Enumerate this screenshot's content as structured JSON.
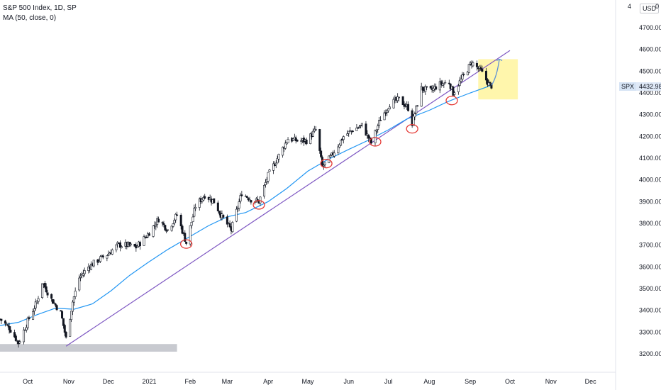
{
  "legend": {
    "title": "S&P 500 Index, 1D, SP",
    "indicator": "MA (50, close, 0)"
  },
  "axis": {
    "currency_label": "USD",
    "top_tick_partial": "4",
    "top_tick_partial_right": "0",
    "y_tick_labels": [
      "4700.00",
      "4600.00",
      "4500.00",
      "4400.00",
      "4300.00",
      "4200.00",
      "4100.00",
      "4000.00",
      "3900.00",
      "3800.00",
      "3700.00",
      "3600.00",
      "3500.00",
      "3400.00",
      "3300.00",
      "3200.00"
    ],
    "x_tick_labels": [
      "Oct",
      "Nov",
      "Dec",
      "2021",
      "Feb",
      "Mar",
      "Apr",
      "May",
      "Jun",
      "Jul",
      "Aug",
      "Sep",
      "Oct",
      "Nov",
      "Dec"
    ]
  },
  "price_tag": {
    "symbol": "SPX",
    "value": "4432.98"
  },
  "colors": {
    "candle": "#131722",
    "ma_line": "#2196f3",
    "trendline": "#7e57c2",
    "support_zone": "#c8cad0",
    "target_zone": "#fff59d",
    "circle": "#e53935",
    "projection": "#5b8fd6"
  },
  "chart_data": {
    "type": "line",
    "ylim": [
      3150,
      4800
    ],
    "y_ticks": [
      4700,
      4600,
      4500,
      4400,
      4300,
      4200,
      4100,
      4000,
      3900,
      3800,
      3700,
      3600,
      3500,
      3400,
      3300,
      3200
    ],
    "x_ticks": [
      {
        "label": "Oct",
        "date": "2020-10-01"
      },
      {
        "label": "Nov",
        "date": "2020-11-01"
      },
      {
        "label": "Dec",
        "date": "2020-12-01"
      },
      {
        "label": "2021",
        "date": "2021-01-01"
      },
      {
        "label": "Feb",
        "date": "2021-02-01"
      },
      {
        "label": "Mar",
        "date": "2021-03-01"
      },
      {
        "label": "Apr",
        "date": "2021-04-01"
      },
      {
        "label": "May",
        "date": "2021-05-01"
      },
      {
        "label": "Jun",
        "date": "2021-06-01"
      },
      {
        "label": "Jul",
        "date": "2021-07-01"
      },
      {
        "label": "Aug",
        "date": "2021-08-01"
      },
      {
        "label": "Sep",
        "date": "2021-09-01"
      },
      {
        "label": "Oct",
        "date": "2021-10-01"
      },
      {
        "label": "Nov",
        "date": "2021-11-01"
      },
      {
        "label": "Dec",
        "date": "2021-12-01"
      }
    ],
    "series": [
      {
        "name": "S&P 500 Index",
        "points": [
          [
            "2020-09-10",
            3360
          ],
          [
            "2020-09-17",
            3320
          ],
          [
            "2020-09-24",
            3250
          ],
          [
            "2020-10-01",
            3350
          ],
          [
            "2020-10-08",
            3440
          ],
          [
            "2020-10-12",
            3530
          ],
          [
            "2020-10-19",
            3450
          ],
          [
            "2020-10-26",
            3390
          ],
          [
            "2020-10-30",
            3270
          ],
          [
            "2020-11-04",
            3440
          ],
          [
            "2020-11-09",
            3550
          ],
          [
            "2020-11-16",
            3600
          ],
          [
            "2020-11-23",
            3630
          ],
          [
            "2020-12-01",
            3660
          ],
          [
            "2020-12-08",
            3700
          ],
          [
            "2020-12-15",
            3700
          ],
          [
            "2020-12-22",
            3690
          ],
          [
            "2020-12-31",
            3750
          ],
          [
            "2021-01-08",
            3820
          ],
          [
            "2021-01-15",
            3770
          ],
          [
            "2021-01-22",
            3840
          ],
          [
            "2021-01-29",
            3710
          ],
          [
            "2021-02-05",
            3880
          ],
          [
            "2021-02-12",
            3930
          ],
          [
            "2021-02-19",
            3900
          ],
          [
            "2021-02-25",
            3830
          ],
          [
            "2021-03-04",
            3770
          ],
          [
            "2021-03-12",
            3940
          ],
          [
            "2021-03-19",
            3910
          ],
          [
            "2021-03-25",
            3900
          ],
          [
            "2021-04-01",
            4020
          ],
          [
            "2021-04-08",
            4100
          ],
          [
            "2021-04-16",
            4190
          ],
          [
            "2021-04-23",
            4180
          ],
          [
            "2021-04-30",
            4180
          ],
          [
            "2021-05-07",
            4230
          ],
          [
            "2021-05-12",
            4060
          ],
          [
            "2021-05-19",
            4110
          ],
          [
            "2021-05-28",
            4200
          ],
          [
            "2021-06-04",
            4230
          ],
          [
            "2021-06-11",
            4250
          ],
          [
            "2021-06-18",
            4170
          ],
          [
            "2021-06-25",
            4280
          ],
          [
            "2021-07-02",
            4350
          ],
          [
            "2021-07-09",
            4370
          ],
          [
            "2021-07-16",
            4330
          ],
          [
            "2021-07-19",
            4260
          ],
          [
            "2021-07-26",
            4420
          ],
          [
            "2021-08-02",
            4410
          ],
          [
            "2021-08-09",
            4440
          ],
          [
            "2021-08-16",
            4450
          ],
          [
            "2021-08-19",
            4400
          ],
          [
            "2021-08-26",
            4470
          ],
          [
            "2021-09-02",
            4540
          ],
          [
            "2021-09-09",
            4500
          ],
          [
            "2021-09-15",
            4440
          ],
          [
            "2021-09-17",
            4432.98
          ]
        ]
      },
      {
        "name": "MA (50, close, 0)",
        "points": [
          [
            "2020-09-10",
            3330
          ],
          [
            "2020-09-24",
            3345
          ],
          [
            "2020-10-08",
            3380
          ],
          [
            "2020-10-22",
            3410
          ],
          [
            "2020-11-05",
            3405
          ],
          [
            "2020-11-19",
            3430
          ],
          [
            "2020-12-03",
            3490
          ],
          [
            "2020-12-17",
            3560
          ],
          [
            "2020-12-31",
            3620
          ],
          [
            "2021-01-15",
            3680
          ],
          [
            "2021-02-01",
            3740
          ],
          [
            "2021-02-15",
            3790
          ],
          [
            "2021-03-01",
            3830
          ],
          [
            "2021-03-15",
            3850
          ],
          [
            "2021-04-01",
            3900
          ],
          [
            "2021-04-15",
            3960
          ],
          [
            "2021-05-01",
            4040
          ],
          [
            "2021-05-15",
            4090
          ],
          [
            "2021-06-01",
            4140
          ],
          [
            "2021-06-15",
            4180
          ],
          [
            "2021-07-01",
            4230
          ],
          [
            "2021-07-15",
            4280
          ],
          [
            "2021-08-01",
            4320
          ],
          [
            "2021-08-15",
            4360
          ],
          [
            "2021-09-01",
            4400
          ],
          [
            "2021-09-17",
            4435
          ]
        ]
      }
    ],
    "annotations": {
      "trendline": {
        "start": [
          "2020-10-30",
          3235
        ],
        "end": [
          "2021-10-01",
          4595
        ]
      },
      "support_zone": {
        "x": [
          "2020-09-10",
          "2021-01-22"
        ],
        "y": [
          3210,
          3245
        ]
      },
      "target_zone": {
        "x": [
          "2021-09-07",
          "2021-10-07"
        ],
        "y": [
          4370,
          4555
        ]
      },
      "touch_circles": [
        [
          "2021-01-29",
          3705
        ],
        [
          "2021-03-25",
          3885
        ],
        [
          "2021-05-15",
          4075
        ],
        [
          "2021-06-21",
          4175
        ],
        [
          "2021-07-19",
          4235
        ],
        [
          "2021-08-18",
          4365
        ]
      ],
      "projection": [
        [
          "2021-09-17",
          4435
        ],
        [
          "2021-09-21",
          4470
        ],
        [
          "2021-09-23",
          4555
        ]
      ]
    }
  }
}
